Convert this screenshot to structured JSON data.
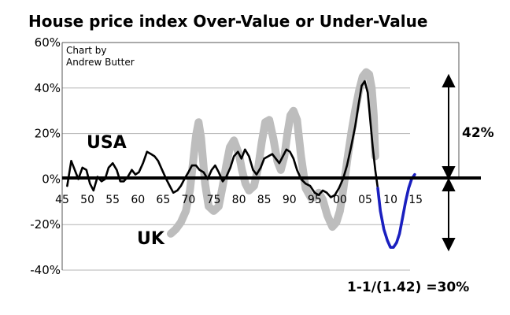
{
  "chart_data": {
    "type": "line",
    "title": "House price index Over-Value or Under-Value",
    "credit_line1": "Chart by",
    "credit_line2": "Andrew Butter",
    "xlabel": "",
    "ylabel": "",
    "xlim": [
      1945,
      2017
    ],
    "ylim": [
      -40,
      60
    ],
    "y_ticks": [
      60,
      40,
      20,
      0,
      -20,
      -40
    ],
    "y_tick_labels": [
      "60%",
      "40%",
      "20%",
      "0%",
      "-20%",
      "-40%"
    ],
    "x_ticks": [
      1945,
      1950,
      1955,
      1960,
      1965,
      1970,
      1975,
      1980,
      1985,
      1990,
      1995,
      2000,
      2005,
      2010,
      2015
    ],
    "x_tick_labels": [
      "45",
      "50",
      "55",
      "60",
      "65",
      "70",
      "75",
      "80",
      "85",
      "90",
      "95",
      "00",
      "05",
      "10",
      "15"
    ],
    "grid": true,
    "series": [
      {
        "name": "UK",
        "color": "#bdbdbd",
        "x": [
          1966.5,
          1967.5,
          1968.5,
          1969.5,
          1970.3,
          1971,
          1971.5,
          1972,
          1972.5,
          1973.3,
          1974,
          1975,
          1976,
          1976.8,
          1977.5,
          1978.2,
          1979,
          1980,
          1980.6,
          1981.3,
          1982,
          1983,
          1983.8,
          1984.5,
          1985.2,
          1986,
          1986.8,
          1987.6,
          1988.3,
          1989,
          1989.6,
          1990.2,
          1990.8,
          1991.5,
          1992.3,
          1993.2,
          1994.2,
          1995,
          1995.8,
          1996.6,
          1997.5,
          1998.5,
          1999.3,
          2000,
          2000.7,
          2001.5,
          2002.3,
          2003,
          2003.8,
          2004.5,
          2005.2,
          2005.8,
          2006.3,
          2006.7,
          2007
        ],
        "values": [
          -24,
          -22,
          -19,
          -14,
          -5,
          9,
          19,
          25,
          18,
          -2,
          -12,
          -14,
          -12,
          -3,
          6,
          14,
          17,
          11,
          4,
          -2,
          -5,
          -3,
          5,
          16,
          25,
          26,
          18,
          8,
          4,
          10,
          20,
          28,
          30,
          26,
          10,
          -4,
          -8,
          -8,
          -6,
          -9,
          -16,
          -21,
          -19,
          -14,
          -4,
          9,
          21,
          30,
          39,
          45,
          47,
          46,
          40,
          28,
          10
        ]
      },
      {
        "name": "USA",
        "color": "#000000",
        "x": [
          1946,
          1946.8,
          1947.5,
          1948.2,
          1949,
          1949.8,
          1950.5,
          1951.2,
          1952,
          1952.8,
          1953.5,
          1954.2,
          1955,
          1955.8,
          1956.5,
          1957.2,
          1958,
          1958.8,
          1959.5,
          1960.2,
          1961,
          1961.8,
          1962.6,
          1963.3,
          1964,
          1964.8,
          1965.6,
          1966.3,
          1967,
          1967.8,
          1968.5,
          1969.2,
          1970,
          1970.7,
          1971.5,
          1972.2,
          1973,
          1973.8,
          1974.6,
          1975.3,
          1976,
          1976.8,
          1977.5,
          1978.3,
          1979,
          1979.8,
          1980.5,
          1981.2,
          1982,
          1982.8,
          1983.5,
          1984.3,
          1985,
          1985.8,
          1986.6,
          1987.3,
          1988,
          1988.7,
          1989.4,
          1990.1,
          1990.8,
          1991.5,
          1992.3,
          1993.2,
          1994.1,
          1995,
          1995.8,
          1996.6,
          1997.4,
          1998.2,
          1999,
          1999.8,
          2000.6,
          2001.4,
          2002.2,
          2003,
          2003.7,
          2004.3,
          2004.9,
          2005.5,
          2006,
          2006.5,
          2007,
          2007.5
        ],
        "values": [
          -3,
          8,
          4,
          0,
          5,
          4,
          -2,
          -5,
          1,
          -1,
          0,
          5,
          7,
          4,
          -1,
          -1,
          1,
          4,
          2,
          3,
          7,
          12,
          11,
          10,
          8,
          4,
          0,
          -3,
          -6,
          -5,
          -3,
          0,
          3,
          6,
          6,
          4,
          3,
          0,
          4,
          6,
          3,
          -1,
          1,
          5,
          10,
          12,
          9,
          13,
          10,
          4,
          2,
          5,
          9,
          10,
          11,
          9,
          7,
          10,
          13,
          12,
          9,
          4,
          0,
          -2,
          -3,
          -6,
          -7,
          -5,
          -6,
          -8,
          -7,
          -4,
          0,
          6,
          14,
          23,
          33,
          41,
          43,
          38,
          26,
          14,
          4,
          -4
        ]
      },
      {
        "name": "",
        "color": "#1a1fbf",
        "x": [
          2007.5,
          2008,
          2008.7,
          2009.4,
          2010,
          2010.6,
          2011.2,
          2011.8,
          2012.4,
          2013,
          2013.6,
          2014.2,
          2014.8
        ],
        "values": [
          -4,
          -14,
          -22,
          -27,
          -30,
          -30,
          -28,
          -24,
          -17,
          -10,
          -4,
          0,
          2
        ]
      }
    ],
    "labels": {
      "usa": "USA",
      "uk": "UK",
      "pct_up": "42%",
      "formula": "1-1/(1.42) =30%"
    }
  }
}
